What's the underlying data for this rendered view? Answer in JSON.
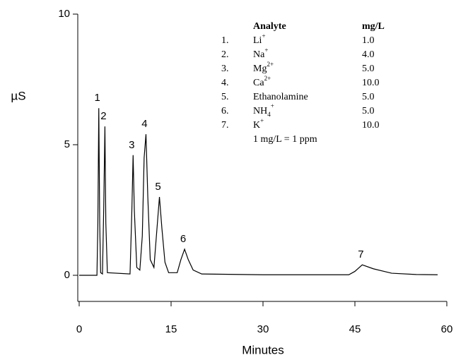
{
  "chart_data": {
    "type": "line",
    "y_label": "µS",
    "x_label": "Minutes",
    "xlim": [
      0,
      60
    ],
    "xticks": [
      0,
      15,
      30,
      45,
      60
    ],
    "ylim": [
      -1,
      10
    ],
    "yticks": [
      0,
      5,
      10
    ],
    "color": "#000000",
    "x": [
      0,
      2.9,
      3.05,
      3.2,
      3.35,
      3.5,
      3.8,
      4.0,
      4.2,
      4.35,
      4.6,
      8.3,
      8.6,
      8.8,
      9.0,
      9.4,
      9.9,
      10.3,
      10.6,
      10.9,
      11.2,
      11.6,
      12.2,
      12.6,
      13.1,
      13.5,
      14.0,
      14.6,
      16.0,
      16.6,
      17.2,
      17.8,
      18.6,
      20,
      30,
      44,
      45,
      46.2,
      48,
      51,
      55,
      58.5
    ],
    "values": [
      0,
      0,
      2.0,
      6.4,
      2.0,
      0.1,
      0.05,
      2.5,
      5.7,
      2.0,
      0.1,
      0.05,
      2.5,
      4.6,
      2.5,
      0.3,
      0.2,
      1.5,
      4.5,
      5.4,
      3.0,
      0.6,
      0.3,
      1.5,
      3.0,
      1.8,
      0.5,
      0.1,
      0.1,
      0.6,
      1.0,
      0.6,
      0.2,
      0.05,
      0.02,
      0.02,
      0.15,
      0.4,
      0.25,
      0.08,
      0.03,
      0.02
    ],
    "annotations": [
      {
        "text": "1",
        "x": 3.2,
        "y": 6.4
      },
      {
        "text": "2",
        "x": 4.2,
        "y": 5.7
      },
      {
        "text": "3",
        "x": 8.8,
        "y": 4.6
      },
      {
        "text": "4",
        "x": 10.9,
        "y": 5.4
      },
      {
        "text": "5",
        "x": 13.1,
        "y": 3.0
      },
      {
        "text": "6",
        "x": 17.2,
        "y": 1.0
      },
      {
        "text": "7",
        "x": 46.2,
        "y": 0.4
      }
    ],
    "table": {
      "header": [
        "Analyte",
        "mg/L"
      ],
      "rows": [
        {
          "no": "1.",
          "name": "Li",
          "sup": "+",
          "conc": "1.0"
        },
        {
          "no": "2.",
          "name": "Na",
          "sup": "+",
          "conc": "4.0"
        },
        {
          "no": "3.",
          "name": "Mg",
          "sup": "2+",
          "conc": "5.0"
        },
        {
          "no": "4.",
          "name": "Ca",
          "sup": "2+",
          "conc": "10.0"
        },
        {
          "no": "5.",
          "name": "Ethanolamine",
          "conc": "5.0"
        },
        {
          "no": "6.",
          "name": "NH",
          "sub": "4",
          "sup": "+",
          "conc": "5.0"
        },
        {
          "no": "7.",
          "name": "K",
          "sup": "+",
          "conc": "10.0"
        }
      ],
      "note": "1 mg/L = 1 ppm"
    }
  }
}
